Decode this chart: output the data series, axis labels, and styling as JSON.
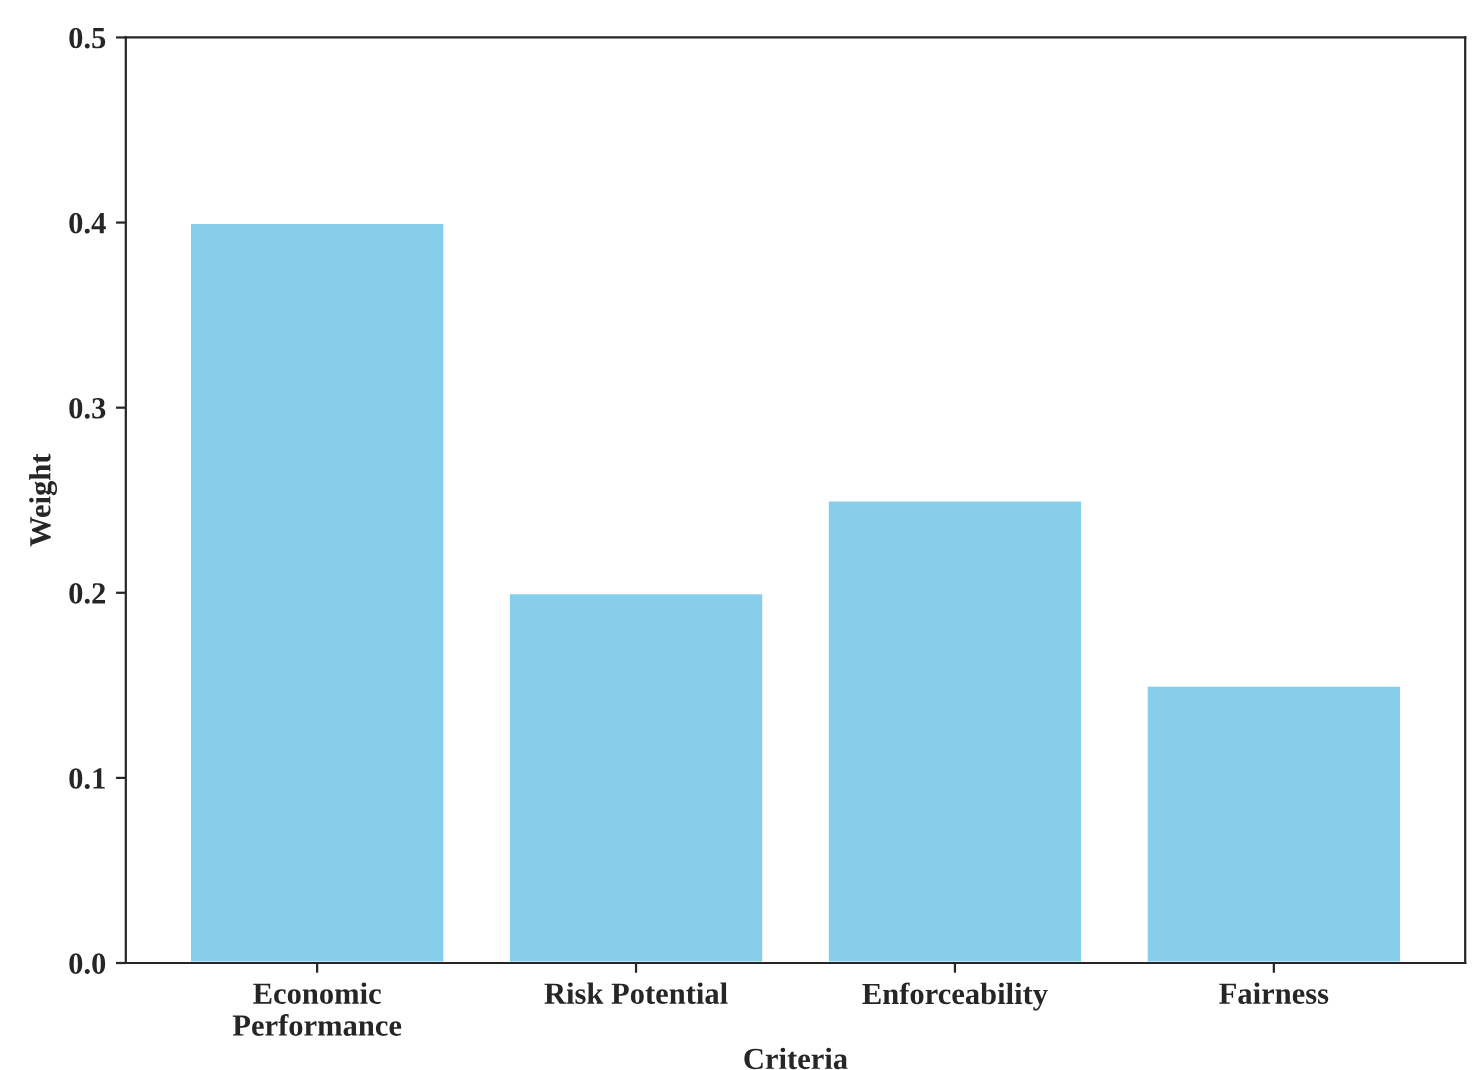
{
  "chart_data": {
    "type": "bar",
    "xlabel": "Criteria",
    "ylabel": "Weight",
    "categories": [
      "Economic\nPerformance",
      "Risk Potential",
      "Enforceability",
      "Fairness"
    ],
    "values": [
      0.4,
      0.2,
      0.25,
      0.15
    ],
    "color": "#87ceeb",
    "ylim": [
      0,
      0.5
    ],
    "yticks": [
      {
        "value": 0,
        "label": "0.0"
      },
      0.1,
      0.2,
      0.3,
      0.4,
      0.5
    ],
    "grid": false,
    "legend": false
  }
}
